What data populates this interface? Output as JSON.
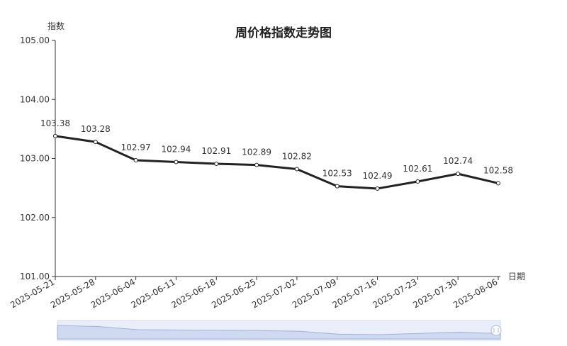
{
  "chart_data": {
    "type": "line",
    "title": "周价格指数走势图",
    "xlabel": "日期",
    "ylabel": "指数",
    "ylim": [
      101.0,
      105.0
    ],
    "yticks": [
      "101.00",
      "102.00",
      "103.00",
      "104.00",
      "105.00"
    ],
    "categories": [
      "2025-05-21",
      "2025-05-28",
      "2025-06-04",
      "2025-06-11",
      "2025-06-18",
      "2025-06-25",
      "2025-07-02",
      "2025-07-09",
      "2025-07-16",
      "2025-07-23",
      "2025-07-30",
      "2025-08-06"
    ],
    "series": [
      {
        "values": [
          103.38,
          103.28,
          102.97,
          102.94,
          102.91,
          102.89,
          102.82,
          102.53,
          102.49,
          102.61,
          102.74,
          102.58
        ]
      }
    ],
    "data_labels": [
      "103.38",
      "103.28",
      "102.97",
      "102.94",
      "102.91",
      "102.89",
      "102.82",
      "102.53",
      "102.49",
      "102.61",
      "102.74",
      "102.58"
    ],
    "line_color": "#222222",
    "grid": false,
    "has_zoom_slider": true
  }
}
